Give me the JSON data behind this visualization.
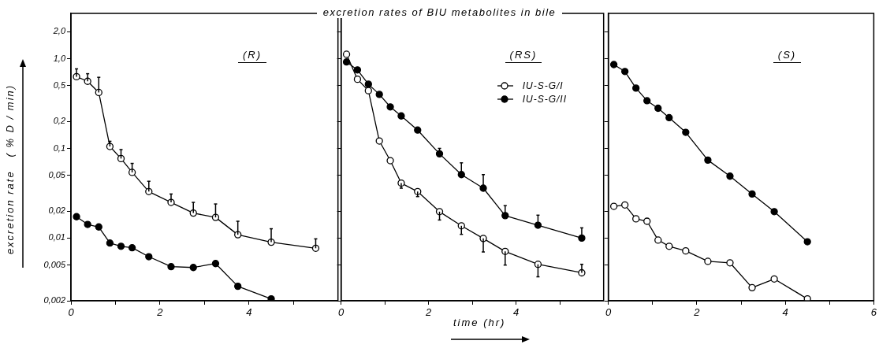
{
  "chart_data": [
    {
      "type": "line",
      "ylabel": "excretion rate   ( % D / min)",
      "annotations": [
        "(R)"
      ],
      "x": [
        0.125,
        0.375,
        0.625,
        0.875,
        1.125,
        1.375,
        1.75,
        2.25,
        2.75,
        3.25,
        3.75,
        4.5,
        5.5
      ],
      "series": [
        {
          "color": "#000000",
          "values": [
            0.63,
            0.56,
            0.42,
            0.105,
            0.077,
            0.054,
            0.033,
            0.025,
            0.019,
            0.017,
            0.0109,
            0.009,
            0.0077
          ],
          "errors": [
            [
              0.63,
              0.77
            ],
            [
              0.56,
              0.68
            ],
            [
              0.42,
              0.62
            ],
            [
              0.105,
              0.12
            ],
            [
              0.077,
              0.097
            ],
            [
              0.054,
              0.068
            ],
            [
              0.033,
              0.043
            ],
            [
              0.025,
              0.031
            ],
            [
              0.019,
              0.025
            ],
            [
              0.017,
              0.024
            ],
            [
              0.0109,
              0.0154
            ],
            [
              0.009,
              0.0127
            ],
            [
              0.0077,
              0.0098
            ]
          ]
        },
        {
          "color": "#000000",
          "x": [
            0.125,
            0.375,
            0.625,
            0.875,
            1.125,
            1.375,
            1.75,
            2.25,
            2.75,
            3.25,
            3.75,
            4.5
          ],
          "values": [
            0.0173,
            0.0142,
            0.0133,
            0.0088,
            0.0081,
            0.0078,
            0.0062,
            0.0048,
            0.0047,
            0.0052,
            0.0029,
            0.0021
          ]
        }
      ],
      "xlim": [
        0,
        6
      ],
      "xticks": [
        0,
        {
          "value": 1,
          "label": null
        },
        2,
        {
          "value": 3,
          "label": null
        },
        4,
        {
          "value": 5,
          "label": null
        }
      ],
      "ylim": [
        0.002,
        3.2
      ],
      "yticks": [
        {
          "value": 0.002,
          "label": "0,002"
        },
        {
          "value": 0.005,
          "label": "0,005"
        },
        {
          "value": 0.01,
          "label": "0,01"
        },
        {
          "value": 0.02,
          "label": "0,02"
        },
        {
          "value": 0.05,
          "label": "0,05"
        },
        {
          "value": 0.1,
          "label": "0,1"
        },
        {
          "value": 0.2,
          "label": "0,2"
        },
        {
          "value": 0.5,
          "label": "0,5"
        },
        {
          "value": 1,
          "label": "1,0"
        },
        {
          "value": 2,
          "label": "2,0"
        }
      ],
      "log": true,
      "marker": "circle"
    },
    {
      "type": "line",
      "title": "excretion rates of BIU metabolites in bile",
      "xlabel": "time (hr)",
      "annotations": [
        "(RS)"
      ],
      "legend": "top right",
      "x": [
        0.125,
        0.375,
        0.625,
        0.875,
        1.125,
        1.375,
        1.75,
        2.25,
        2.75,
        3.25,
        3.75,
        4.5,
        5.5
      ],
      "series": [
        {
          "name": "IU-S-G/I",
          "color": "#000000",
          "values": [
            1.12,
            0.59,
            0.44,
            0.121,
            0.073,
            0.041,
            0.033,
            0.0197,
            0.0137,
            0.0099,
            0.0071,
            0.0051,
            0.0041
          ],
          "errors": [
            null,
            null,
            null,
            null,
            null,
            [
              0.036,
              0.041
            ],
            [
              0.029,
              0.033
            ],
            [
              0.0159,
              0.0197
            ],
            [
              0.011,
              0.0137
            ],
            [
              0.007,
              0.0099
            ],
            [
              0.005,
              0.0071
            ],
            [
              0.0037,
              0.0051
            ],
            [
              0.0041,
              0.0051
            ]
          ]
        },
        {
          "name": "IU-S-G/II",
          "color": "#000000",
          "values": [
            0.92,
            0.75,
            0.52,
            0.4,
            0.29,
            0.23,
            0.16,
            0.087,
            0.051,
            0.036,
            0.0178,
            0.0139,
            0.01
          ],
          "errors": [
            null,
            null,
            null,
            null,
            null,
            null,
            null,
            [
              0.087,
              0.1
            ],
            [
              0.051,
              0.069
            ],
            [
              0.036,
              0.051
            ],
            [
              0.0178,
              0.023
            ],
            [
              0.0139,
              0.018
            ],
            [
              0.01,
              0.013
            ]
          ]
        }
      ],
      "xlim": [
        0,
        6
      ],
      "xticks": [
        0,
        {
          "value": 1,
          "label": null
        },
        2,
        {
          "value": 3,
          "label": null
        },
        4,
        {
          "value": 5,
          "label": null
        }
      ],
      "ylim": [
        0.002,
        3.2
      ],
      "yticks": [
        {
          "value": 0.002,
          "label": null
        },
        {
          "value": 0.005,
          "label": null
        },
        {
          "value": 0.01,
          "label": null
        },
        {
          "value": 0.02,
          "label": null
        },
        {
          "value": 0.05,
          "label": null
        },
        {
          "value": 0.1,
          "label": null
        },
        {
          "value": 0.2,
          "label": null
        },
        {
          "value": 0.5,
          "label": null
        },
        {
          "value": 1,
          "label": null
        },
        {
          "value": 2,
          "label": null
        }
      ],
      "log": true,
      "marker": "circle",
      "tick_labels": "x"
    },
    {
      "type": "line",
      "annotations": [
        "(S)"
      ],
      "x": [
        0.125,
        0.375,
        0.625,
        0.875,
        1.125,
        1.375,
        1.75,
        2.25,
        2.75,
        3.25,
        3.75,
        4.5
      ],
      "series": [
        {
          "color": "#000000",
          "values": [
            0.0226,
            0.0234,
            0.0164,
            0.0154,
            0.0095,
            0.0081,
            0.0072,
            0.0055,
            0.0053,
            0.0028,
            0.0035,
            0.0021
          ]
        },
        {
          "color": "#000000",
          "values": [
            0.86,
            0.72,
            0.47,
            0.34,
            0.28,
            0.22,
            0.151,
            0.074,
            0.049,
            0.031,
            0.0197,
            0.0091
          ]
        }
      ],
      "xlim": [
        0,
        6
      ],
      "xticks": [
        0,
        {
          "value": 1,
          "label": null
        },
        2,
        {
          "value": 3,
          "label": null
        },
        4,
        {
          "value": 5,
          "label": null
        },
        6
      ],
      "ylim": [
        0.002,
        3.2
      ],
      "yticks": [
        {
          "value": 0.002,
          "label": null
        },
        {
          "value": 0.005,
          "label": null
        },
        {
          "value": 0.01,
          "label": null
        },
        {
          "value": 0.02,
          "label": null
        },
        {
          "value": 0.05,
          "label": null
        },
        {
          "value": 0.1,
          "label": null
        },
        {
          "value": 0.2,
          "label": null
        },
        {
          "value": 0.5,
          "label": null
        },
        {
          "value": 1,
          "label": null
        },
        {
          "value": 2,
          "label": null
        }
      ],
      "log": true,
      "marker": "circle",
      "tick_labels": "x"
    }
  ]
}
